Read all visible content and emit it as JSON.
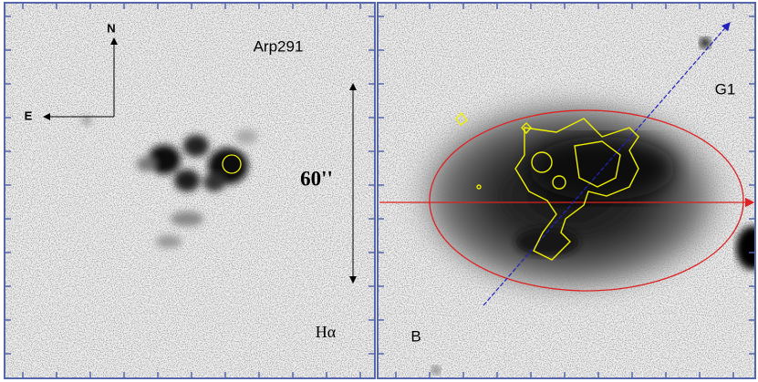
{
  "left_panel": {
    "north": "N",
    "east": "E",
    "object": "Arp291",
    "scale": "60''",
    "filter": "Hα"
  },
  "right_panel": {
    "companion": "G1",
    "filter": "B"
  }
}
